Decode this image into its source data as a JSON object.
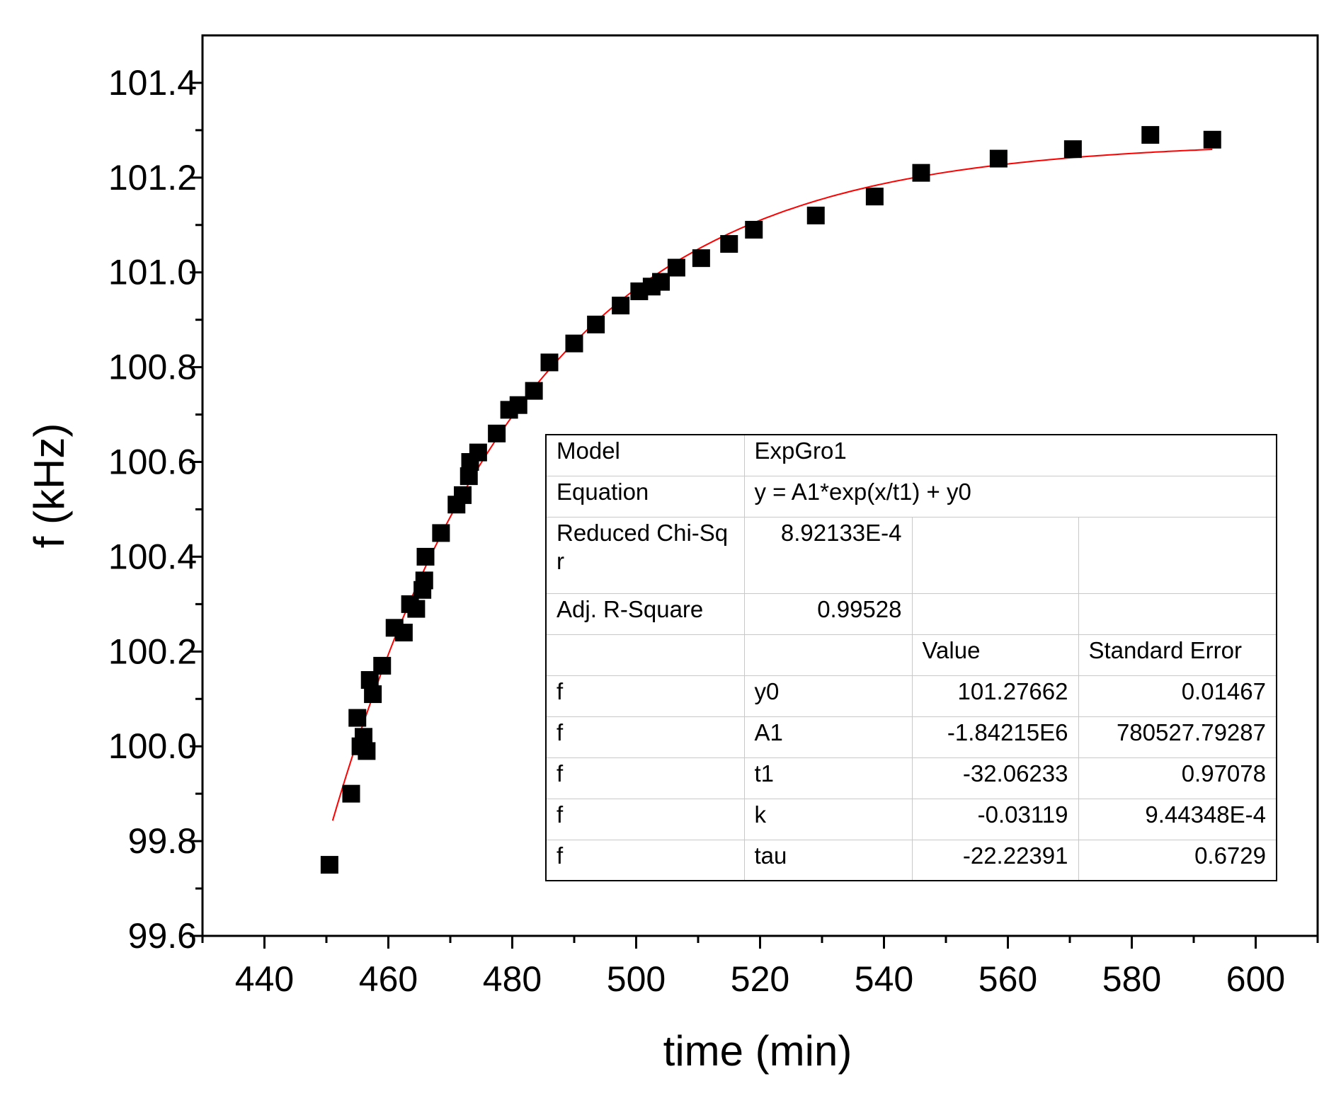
{
  "chart_data": {
    "type": "scatter",
    "xlabel": "time (min)",
    "ylabel": "f (kHz)",
    "xlim": [
      430,
      610
    ],
    "ylim": [
      99.6,
      101.5
    ],
    "xticks": [
      "440",
      "460",
      "480",
      "500",
      "520",
      "540",
      "560",
      "580",
      "600"
    ],
    "yticks": [
      "99.6",
      "99.8",
      "100.0",
      "100.2",
      "100.4",
      "100.6",
      "100.8",
      "101.0",
      "101.2",
      "101.4"
    ],
    "series": [
      {
        "name": "f",
        "marker": "square",
        "color": "#000000",
        "points": [
          [
            450.5,
            99.75
          ],
          [
            454.0,
            99.9
          ],
          [
            455.0,
            100.06
          ],
          [
            455.5,
            100.0
          ],
          [
            456.0,
            100.02
          ],
          [
            456.5,
            99.99
          ],
          [
            457.0,
            100.14
          ],
          [
            457.5,
            100.11
          ],
          [
            459.0,
            100.17
          ],
          [
            461.0,
            100.25
          ],
          [
            462.5,
            100.24
          ],
          [
            463.5,
            100.3
          ],
          [
            464.5,
            100.29
          ],
          [
            465.5,
            100.33
          ],
          [
            465.8,
            100.35
          ],
          [
            466.0,
            100.4
          ],
          [
            468.5,
            100.45
          ],
          [
            471.0,
            100.51
          ],
          [
            472.0,
            100.53
          ],
          [
            473.0,
            100.57
          ],
          [
            473.2,
            100.6
          ],
          [
            474.5,
            100.62
          ],
          [
            477.5,
            100.66
          ],
          [
            479.5,
            100.71
          ],
          [
            481.0,
            100.72
          ],
          [
            483.5,
            100.75
          ],
          [
            486.0,
            100.81
          ],
          [
            490.0,
            100.85
          ],
          [
            493.5,
            100.89
          ],
          [
            497.5,
            100.93
          ],
          [
            500.5,
            100.96
          ],
          [
            502.5,
            100.97
          ],
          [
            504.0,
            100.98
          ],
          [
            506.5,
            101.01
          ],
          [
            510.5,
            101.03
          ],
          [
            515.0,
            101.06
          ],
          [
            519.0,
            101.09
          ],
          [
            529.0,
            101.12
          ],
          [
            538.5,
            101.16
          ],
          [
            546.0,
            101.21
          ],
          [
            558.5,
            101.24
          ],
          [
            570.5,
            101.26
          ],
          [
            583.0,
            101.29
          ],
          [
            593.0,
            101.28
          ]
        ]
      }
    ],
    "fit": {
      "name": "ExpGro1",
      "color": "#ff0000",
      "y0": 101.27662,
      "A1": -1842150,
      "t1": -32.06233,
      "x_start": 451,
      "x_end": 593
    }
  },
  "fit_table": {
    "model_label": "Model",
    "model_value": "ExpGro1",
    "equation_label": "Equation",
    "equation_value": "y = A1*exp(x/t1) + y0",
    "chisq_label": "Reduced Chi-Sqr",
    "chisq_value": "8.92133E-4",
    "r2_label": "Adj. R-Square",
    "r2_value": "0.99528",
    "col_value": "Value",
    "col_error": "Standard Error",
    "rows": [
      {
        "name": "f",
        "param": "y0",
        "value": "101.27662",
        "error": "0.01467"
      },
      {
        "name": "f",
        "param": "A1",
        "value": "-1.84215E6",
        "error": "780527.79287"
      },
      {
        "name": "f",
        "param": "t1",
        "value": "-32.06233",
        "error": "0.97078"
      },
      {
        "name": "f",
        "param": "k",
        "value": "-0.03119",
        "error": "9.44348E-4"
      },
      {
        "name": "f",
        "param": "tau",
        "value": "-22.22391",
        "error": "0.6729"
      }
    ]
  }
}
